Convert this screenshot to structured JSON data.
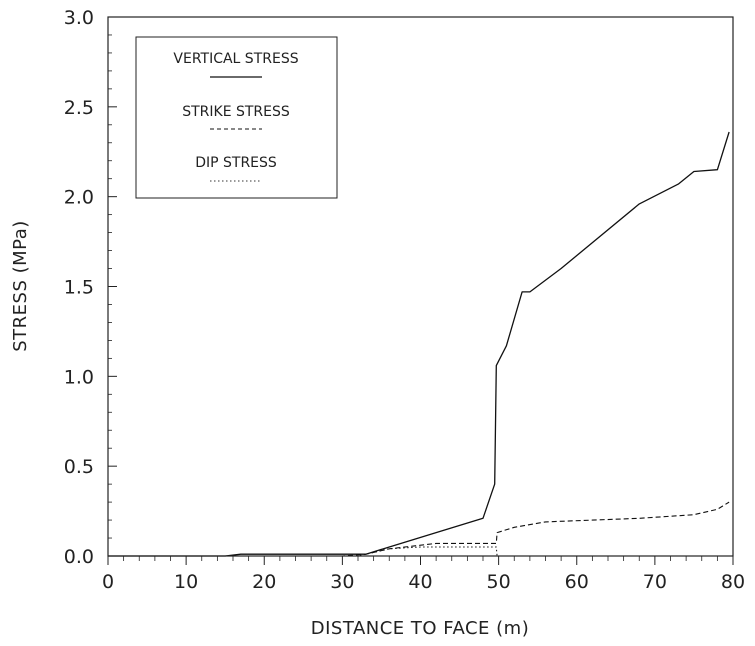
{
  "chart_data": {
    "type": "line",
    "xlabel": "DISTANCE TO FACE (m)",
    "ylabel": "STRESS (MPa)",
    "xlim": [
      0,
      80
    ],
    "ylim": [
      0,
      3.0
    ],
    "x_ticks": [
      "0",
      "10",
      "20",
      "30",
      "40",
      "50",
      "60",
      "70",
      "80"
    ],
    "y_ticks": [
      "0.0",
      "0.5",
      "1.0",
      "1.5",
      "2.0",
      "2.5",
      "3.0"
    ],
    "grid": false,
    "legend_position": "top-left",
    "series": [
      {
        "name": "VERTICAL STRESS",
        "style": "solid",
        "color": "#111111",
        "points": [
          [
            0,
            0.0
          ],
          [
            15,
            0.0
          ],
          [
            17,
            0.01
          ],
          [
            30,
            0.01
          ],
          [
            33,
            0.01
          ],
          [
            36,
            0.05
          ],
          [
            42,
            0.13
          ],
          [
            48,
            0.21
          ],
          [
            49.5,
            0.4
          ],
          [
            49.7,
            1.06
          ],
          [
            51,
            1.17
          ],
          [
            53,
            1.47
          ],
          [
            54,
            1.47
          ],
          [
            58,
            1.6
          ],
          [
            68,
            1.96
          ],
          [
            73,
            2.07
          ],
          [
            75,
            2.14
          ],
          [
            78,
            2.15
          ],
          [
            79.5,
            2.36
          ]
        ]
      },
      {
        "name": "STRIKE STRESS",
        "style": "dashed",
        "color": "#111111",
        "points": [
          [
            0,
            0.0
          ],
          [
            30,
            0.0
          ],
          [
            33,
            0.01
          ],
          [
            36,
            0.04
          ],
          [
            40,
            0.06
          ],
          [
            42,
            0.07
          ],
          [
            49.7,
            0.07
          ],
          [
            49.8,
            0.13
          ],
          [
            52,
            0.16
          ],
          [
            56,
            0.19
          ],
          [
            62,
            0.2
          ],
          [
            68,
            0.21
          ],
          [
            75,
            0.23
          ],
          [
            78,
            0.26
          ],
          [
            79.5,
            0.3
          ]
        ]
      },
      {
        "name": "DIP STRESS",
        "style": "dotted",
        "color": "#111111",
        "points": [
          [
            0,
            0.0
          ],
          [
            30,
            0.0
          ],
          [
            32,
            0.0
          ],
          [
            36,
            0.04
          ],
          [
            40,
            0.05
          ],
          [
            49.7,
            0.05
          ],
          [
            49.8,
            0.0
          ]
        ]
      }
    ]
  }
}
